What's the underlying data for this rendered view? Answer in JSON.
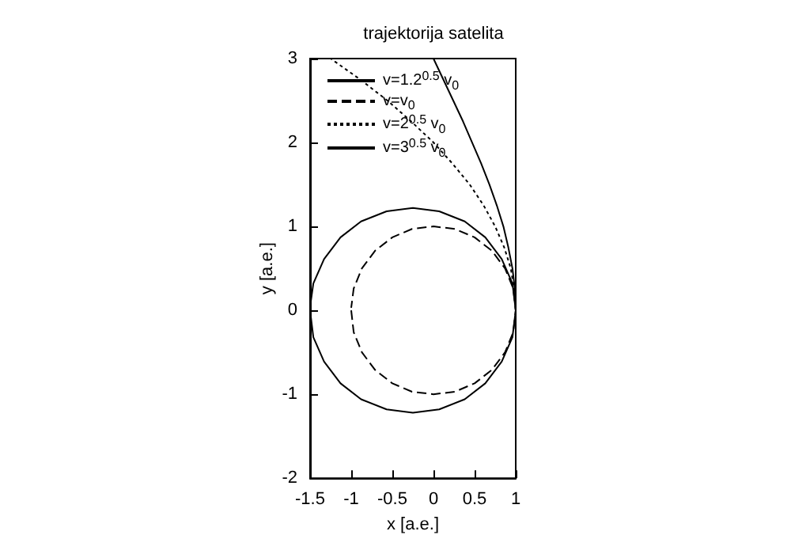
{
  "chart_data": {
    "type": "line",
    "title": "trajektorija satelita",
    "xlabel": "x [a.e.]",
    "ylabel": "y [a.e.]",
    "xlim": [
      -1.5,
      1
    ],
    "ylim": [
      -2,
      3
    ],
    "xticks": [
      -1.5,
      -1,
      -0.5,
      0,
      0.5,
      1
    ],
    "yticks": [
      -2,
      -1,
      0,
      1,
      2,
      3
    ],
    "grid": false,
    "legend": "top left",
    "marker": "none",
    "series": [
      {
        "name": "v=1.2$^{0.5}$ v$_{0}$",
        "color": "#000000",
        "line_style": "solid",
        "x": [
          -1.5,
          -1.46,
          -1.33,
          -1.13,
          -0.88,
          -0.57,
          -0.25,
          0.07,
          0.38,
          0.63,
          0.83,
          0.96,
          1,
          0.96,
          0.83,
          0.63,
          0.38,
          0.07,
          -0.25,
          -0.57,
          -0.88,
          -1.13,
          -1.33,
          -1.46,
          -1.5
        ],
        "values": [
          0,
          -0.32,
          -0.61,
          -0.87,
          -1.06,
          -1.18,
          -1.22,
          -1.18,
          -1.06,
          -0.87,
          -0.61,
          -0.32,
          0,
          0.32,
          0.61,
          0.87,
          1.06,
          1.18,
          1.22,
          1.18,
          1.06,
          0.87,
          0.61,
          0.32,
          0.04
        ]
      },
      {
        "name": "v=v$_{0}$",
        "color": "#000000",
        "line_style": "dashed",
        "x": [
          -1,
          -0.97,
          -0.87,
          -0.71,
          -0.5,
          -0.26,
          0,
          0.26,
          0.5,
          0.71,
          0.87,
          0.97,
          1,
          0.97,
          0.87,
          0.71,
          0.5,
          0.26,
          0,
          -0.26,
          -0.5,
          -0.71,
          -0.87,
          -0.97,
          -1
        ],
        "values": [
          0,
          -0.26,
          -0.5,
          -0.71,
          -0.87,
          -0.97,
          -1,
          -0.97,
          -0.87,
          -0.71,
          -0.5,
          -0.26,
          0,
          0.26,
          0.5,
          0.71,
          0.87,
          0.97,
          1,
          0.97,
          0.87,
          0.71,
          0.5,
          0.26,
          0.03
        ]
      },
      {
        "name": "v=2$^{0.5}$ v$_{0}$",
        "color": "#000000",
        "line_style": "dotted",
        "x": [
          1,
          0.98,
          0.94,
          0.86,
          0.75,
          0.61,
          0.44,
          0.23,
          0,
          -0.27,
          -0.56,
          -0.89,
          -1.25
        ],
        "values": [
          0,
          0.25,
          0.5,
          0.75,
          1,
          1.25,
          1.5,
          1.75,
          2,
          2.25,
          2.5,
          2.75,
          3
        ]
      },
      {
        "name": "v=3$^{0.5}$ v$_{0}$",
        "color": "#000000",
        "line_style": "solid",
        "x": [
          1,
          0.99,
          0.96,
          0.91,
          0.85,
          0.77,
          0.68,
          0.58,
          0.47,
          0.36,
          0.24,
          0.12,
          0
        ],
        "values": [
          0,
          0.25,
          0.5,
          0.75,
          1,
          1.25,
          1.5,
          1.75,
          2,
          2.25,
          2.5,
          2.75,
          3
        ]
      }
    ]
  }
}
